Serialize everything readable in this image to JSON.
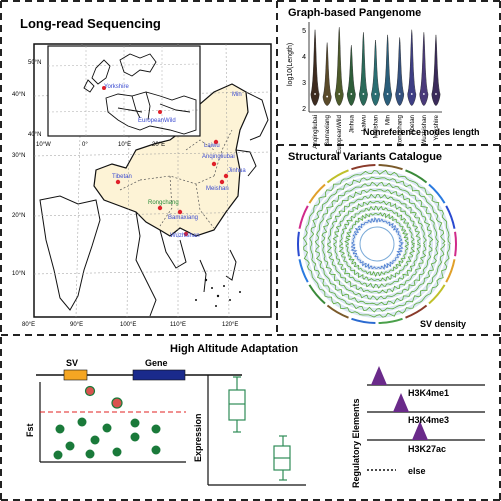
{
  "panels": {
    "long_read": {
      "title": "Long-read Sequencing",
      "lat_labels": [
        "40°N",
        "30°N",
        "20°N",
        "10°N"
      ],
      "lon_labels": [
        "80°E",
        "90°E",
        "100°E",
        "110°E",
        "120°E"
      ],
      "inset_lat_labels": [
        "50°N",
        "40°N"
      ],
      "inset_lon_labels": [
        "10°W",
        "0°",
        "10°E",
        "20°E"
      ],
      "inset_sites": [
        "Yorkshire",
        "EuropeanWild",
        "Min"
      ],
      "map_sites": [
        "Tibetan",
        "Rongchang",
        "Wuzhishan",
        "Jinhua",
        "Anqingliubai",
        "Laiwu",
        "Meishan",
        "Bamaxiang"
      ]
    },
    "pangenome": {
      "title": "Graph-based Pangenome",
      "ylabel": "log10(Length)",
      "xlabel": "Nonreference nodes length",
      "y_ticks": [
        "5",
        "4",
        "3",
        "2"
      ]
    },
    "sv_catalog": {
      "title": "Structural Variants Catalogue",
      "caption": "SV density"
    },
    "adaptation": {
      "title": "High Altitude Adaptation",
      "sv_label": "SV",
      "gene_label": "Gene",
      "fst_label": "Fst",
      "expression_label": "Expression",
      "regulatory_label": "Regulatory Elements",
      "tracks": [
        "H3K4me1",
        "H3K4me3",
        "H3K27ac"
      ],
      "else_label": "else"
    }
  },
  "chart_data": [
    {
      "type": "violin",
      "ylabel": "log10(Length)",
      "xlabel": "Nonreference nodes length",
      "ylim": [
        1.8,
        5.3
      ],
      "categories": [
        "Anqingliubai",
        "Bamaxiang",
        "EuropeanWild",
        "Jinhua",
        "Laiwu",
        "Meishan",
        "Min",
        "Rongchang",
        "Tibetan",
        "Wuzhishan",
        "Yorkshire"
      ],
      "medians": [
        2.5,
        2.4,
        2.5,
        2.5,
        2.5,
        2.5,
        2.5,
        2.5,
        2.5,
        2.5,
        2.5
      ],
      "maxima": [
        5.0,
        4.5,
        5.1,
        4.4,
        4.9,
        4.6,
        4.8,
        4.7,
        5.0,
        4.9,
        4.8
      ],
      "colors": [
        "#3d2b1f",
        "#5a4a2a",
        "#4d5a2a",
        "#2e5e3a",
        "#2a6a5a",
        "#2a6e72",
        "#2a5e7a",
        "#34507e",
        "#3e3e84",
        "#4a3a7a",
        "#3a2a5a"
      ]
    },
    {
      "type": "scatter",
      "ylabel": "Fst",
      "highlighted_points": 2,
      "background_points": 12
    },
    {
      "type": "box",
      "ylabel": "Expression",
      "groups": 2
    }
  ],
  "colors": {
    "sv_block": "#f5a623",
    "gene_block": "#1a2a8c",
    "highlight_point": "#d9534f",
    "background_point": "#1a7a3a",
    "threshold": "#e02020",
    "peak": "#6a2a8a",
    "box": "#2e8b57",
    "region_fill": "#fdf3d6"
  }
}
